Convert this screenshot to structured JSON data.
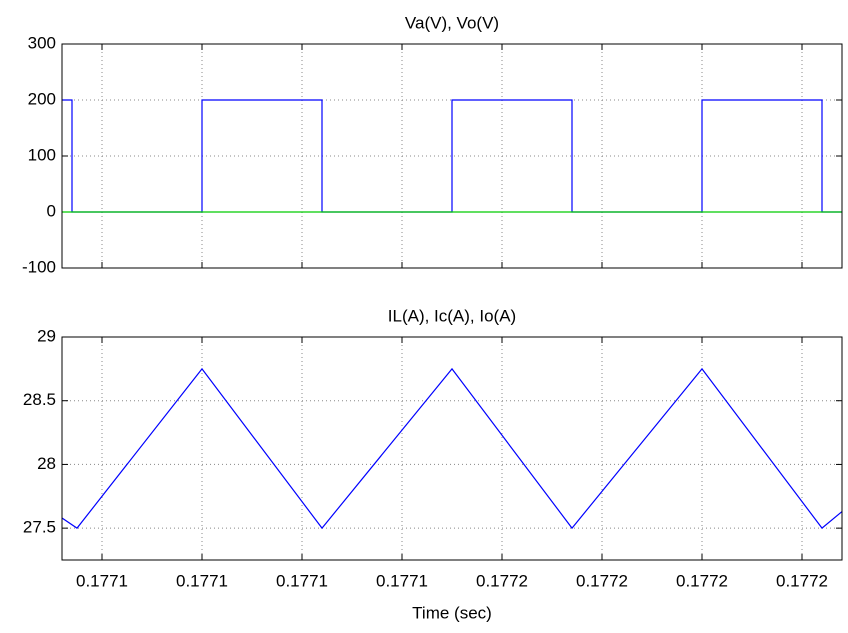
{
  "chart_data": [
    {
      "type": "line",
      "title": "Va(V), Vo(V)",
      "xlim": [
        0.1771461,
        0.1771539
      ],
      "xticks": [
        0.1771465,
        0.1771475,
        0.1771485,
        0.1771495,
        0.1771505,
        0.1771515,
        0.1771525,
        0.1771535
      ],
      "ylim": [
        -100,
        300
      ],
      "yticks": [
        -100,
        0,
        100,
        200,
        300
      ],
      "grid": true,
      "series": [
        {
          "color": "#0000ff",
          "x": [
            0.1771461,
            0.1771462,
            0.1771462,
            0.1771475,
            0.1771475,
            0.1771487,
            0.1771487,
            0.17715,
            0.17715,
            0.1771512,
            0.1771512,
            0.1771525,
            0.1771525,
            0.1771537,
            0.1771537,
            0.1771539
          ],
          "values": [
            200,
            200,
            0,
            0,
            200,
            200,
            0,
            0,
            200,
            200,
            0,
            0,
            200,
            200,
            0,
            0
          ]
        },
        {
          "color": "#00cc00",
          "x": [
            0.1771461,
            0.1771539
          ],
          "values": [
            0,
            0
          ]
        }
      ]
    },
    {
      "type": "line",
      "title": "IL(A), Ic(A), Io(A)",
      "xlabel": "Time (sec)",
      "xlim": [
        0.1771461,
        0.1771539
      ],
      "xticks": [
        {
          "value": 0.1771465,
          "label": "0.1771"
        },
        {
          "value": 0.1771475,
          "label": "0.1771"
        },
        {
          "value": 0.1771485,
          "label": "0.1771"
        },
        {
          "value": 0.1771495,
          "label": "0.1771"
        },
        {
          "value": 0.1771505,
          "label": "0.1772"
        },
        {
          "value": 0.1771515,
          "label": "0.1772"
        },
        {
          "value": 0.1771525,
          "label": "0.1772"
        },
        {
          "value": 0.1771535,
          "label": "0.1772"
        }
      ],
      "ylim": [
        27.25,
        29
      ],
      "yticks": [
        27.5,
        28,
        28.5,
        29
      ],
      "grid": true,
      "series": [
        {
          "color": "#0000ff",
          "x": [
            0.1771461,
            0.17714625,
            0.1771475,
            0.1771487,
            0.17715,
            0.1771512,
            0.1771525,
            0.1771537,
            0.1771539
          ],
          "values": [
            27.58,
            27.5,
            28.75,
            27.5,
            28.75,
            27.5,
            28.75,
            27.5,
            27.63
          ]
        }
      ]
    }
  ]
}
